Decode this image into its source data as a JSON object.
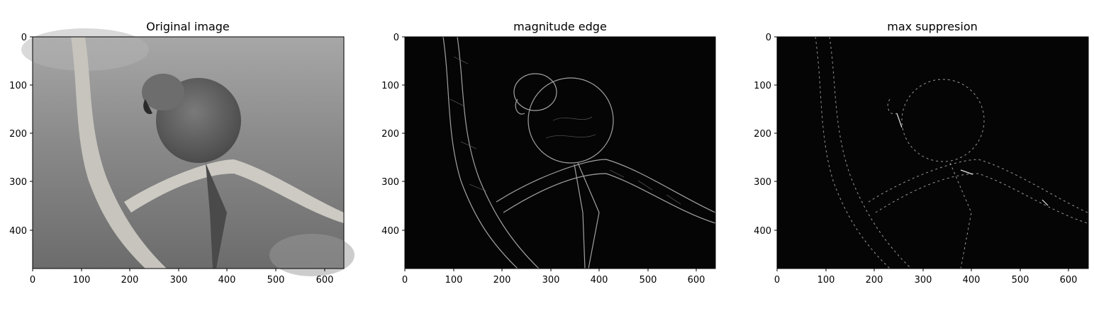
{
  "figure": {
    "panels": [
      {
        "id": "original",
        "title": "Original image",
        "style": "grayscale-photo",
        "xticks": [
          "0",
          "100",
          "200",
          "300",
          "400",
          "500",
          "600"
        ],
        "yticks": [
          "0",
          "100",
          "200",
          "300",
          "400"
        ]
      },
      {
        "id": "magnitude",
        "title": "magnitude edge",
        "style": "edge-magnitude",
        "xticks": [
          "0",
          "100",
          "200",
          "300",
          "400",
          "500",
          "600"
        ],
        "yticks": [
          "0",
          "100",
          "200",
          "300",
          "400"
        ]
      },
      {
        "id": "suppression",
        "title": "max suppresion",
        "style": "non-max-suppression",
        "xticks": [
          "0",
          "100",
          "200",
          "300",
          "400",
          "500",
          "600"
        ],
        "yticks": [
          "0",
          "100",
          "200",
          "300",
          "400"
        ]
      }
    ],
    "image_size": {
      "width": 640,
      "height": 480
    },
    "colors": {
      "edge_bg": "#050505",
      "edge_stroke": "#bdbdbd",
      "photo_bg": "#8f8f8f",
      "branch": "#c9c6c0",
      "bird": "#5c5c5c"
    }
  }
}
